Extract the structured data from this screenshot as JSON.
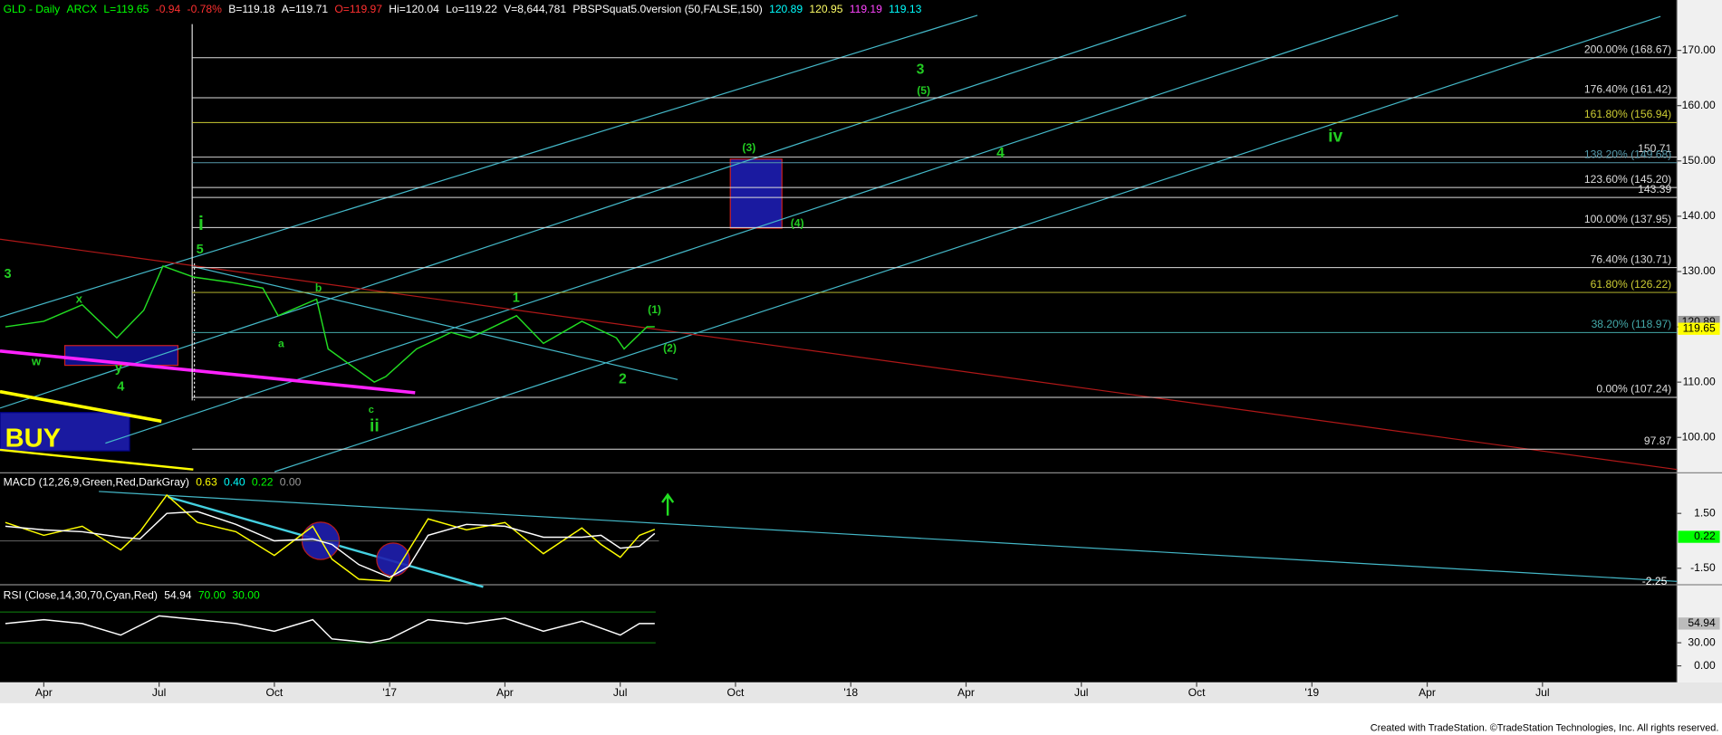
{
  "chart_data": [
    {
      "type": "line",
      "header": [
        {
          "text": "GLD - Daily",
          "color": "#00ff00"
        },
        {
          "text": "ARCX",
          "color": "#00ff00"
        },
        {
          "text": "L=119.65",
          "color": "#00ff00"
        },
        {
          "text": "-0.94",
          "color": "#ff3030"
        },
        {
          "text": "-0.78%",
          "color": "#ff3030"
        },
        {
          "text": "B=119.18",
          "color": "#ffffff"
        },
        {
          "text": "A=119.71",
          "color": "#ffffff"
        },
        {
          "text": "O=119.97",
          "color": "#ff3030"
        },
        {
          "text": "Hi=120.04",
          "color": "#ffffff"
        },
        {
          "text": "Lo=119.22",
          "color": "#ffffff"
        },
        {
          "text": "V=8,644,781",
          "color": "#ffffff"
        },
        {
          "text": "PBSPSquat5.0version (50,FALSE,150)",
          "color": "#ffffff"
        },
        {
          "text": "120.89",
          "color": "#00ffff"
        },
        {
          "text": "120.95",
          "color": "#ffff66"
        },
        {
          "text": "119.19",
          "color": "#ff44ff"
        },
        {
          "text": "119.13",
          "color": "#00ffff"
        }
      ],
      "xlim": [
        1.86,
        45.5
      ],
      "xticks": [
        {
          "value": 3,
          "label": "Apr"
        },
        {
          "value": 6,
          "label": "Jul"
        },
        {
          "value": 9,
          "label": "Oct"
        },
        {
          "value": 12,
          "label": "'17"
        },
        {
          "value": 15,
          "label": "Apr"
        },
        {
          "value": 18,
          "label": "Jul"
        },
        {
          "value": 21,
          "label": "Oct"
        },
        {
          "value": 24,
          "label": "'18"
        },
        {
          "value": 27,
          "label": "Apr"
        },
        {
          "value": 30,
          "label": "Jul"
        },
        {
          "value": 33,
          "label": "Oct"
        },
        {
          "value": 36,
          "label": "'19"
        },
        {
          "value": 39,
          "label": "Apr"
        },
        {
          "value": 42,
          "label": "Jul"
        }
      ],
      "ylim": [
        93.8,
        179.1
      ],
      "yticks": [
        {
          "value": 100,
          "label": "100.00"
        },
        {
          "value": 110,
          "label": "110.00"
        },
        {
          "value": 120,
          "label": "120.00"
        },
        {
          "value": 130,
          "label": "130.00"
        },
        {
          "value": 140,
          "label": "140.00"
        },
        {
          "value": 150,
          "label": "150.00"
        },
        {
          "value": 160,
          "label": "160.00"
        },
        {
          "value": 170,
          "label": "170.00"
        }
      ],
      "x": [
        2.0,
        3.0,
        4.0,
        4.9,
        5.6,
        6.1,
        6.9,
        7.9,
        8.7,
        9.1,
        10.1,
        10.4,
        11.0,
        11.6,
        11.9,
        12.7,
        13.6,
        14.1,
        15.3,
        16.0,
        17.0,
        17.9,
        18.1,
        18.7,
        18.9
      ],
      "series": [
        {
          "color": "#22dd22",
          "values": [
            120,
            121,
            124,
            118,
            123,
            131,
            129,
            128,
            127,
            122,
            125,
            116,
            113,
            110,
            111,
            116,
            119,
            118,
            122,
            117,
            121,
            118,
            116,
            120,
            120
          ]
        }
      ],
      "levels": [
        {
          "value": 168.67,
          "label": "200.00% (168.67)",
          "color": "#dddddd"
        },
        {
          "value": 161.42,
          "label": "176.40% (161.42)",
          "color": "#dddddd"
        },
        {
          "value": 156.94,
          "label": "161.80% (156.94)",
          "color": "#cccc33"
        },
        {
          "value": 150.71,
          "label": "150.71",
          "color": "#dddddd"
        },
        {
          "value": 149.68,
          "label": "138.20% (149.68)",
          "color": "#5599aa"
        },
        {
          "value": 145.2,
          "label": "123.60% (145.20)",
          "color": "#dddddd"
        },
        {
          "value": 143.39,
          "label": "143.39",
          "color": "#dddddd"
        },
        {
          "value": 137.95,
          "label": "100.00% (137.95)",
          "color": "#dddddd"
        },
        {
          "value": 130.71,
          "label": "76.40% (130.71)",
          "color": "#dddddd"
        },
        {
          "value": 126.22,
          "label": "61.80% (126.22)",
          "color": "#cccc33"
        },
        {
          "value": 118.97,
          "label": "38.20% (118.97)",
          "color": "#44aaaa"
        },
        {
          "value": 107.24,
          "label": "0.00% (107.24)",
          "color": "#dddddd"
        },
        {
          "value": 97.87,
          "label": "97.87",
          "color": "#dddddd"
        }
      ],
      "last_labels": [
        {
          "value": 120.89,
          "label": "120.89",
          "color": "#9a9a9a"
        },
        {
          "value": 119.65,
          "label": "119.65",
          "color": "#ffff00"
        }
      ],
      "annotations": [
        {
          "text": "3",
          "color": "#22cc22"
        },
        {
          "text": "w",
          "color": "#22cc22"
        },
        {
          "text": "x",
          "color": "#22cc22"
        },
        {
          "text": "y",
          "color": "#22cc22"
        },
        {
          "text": "4",
          "color": "#22cc22"
        },
        {
          "text": "i",
          "color": "#22cc22"
        },
        {
          "text": "5",
          "color": "#22cc22"
        },
        {
          "text": "b",
          "color": "#22cc22"
        },
        {
          "text": "a",
          "color": "#22cc22"
        },
        {
          "text": "c",
          "color": "#22cc22"
        },
        {
          "text": "ii",
          "color": "#22cc22"
        },
        {
          "text": "1",
          "color": "#22cc22"
        },
        {
          "text": "2",
          "color": "#22cc22"
        },
        {
          "text": "(1)",
          "color": "#22cc22"
        },
        {
          "text": "(2)",
          "color": "#22cc22"
        },
        {
          "text": "(3)",
          "color": "#22cc22"
        },
        {
          "text": "(4)",
          "color": "#22cc22"
        },
        {
          "text": "3",
          "color": "#22cc22"
        },
        {
          "text": "(5)",
          "color": "#22cc22"
        },
        {
          "text": "4",
          "color": "#22cc22"
        },
        {
          "text": "iv",
          "color": "#22cc22"
        },
        {
          "text": "BUY",
          "color": "#ffff00"
        }
      ]
    },
    {
      "type": "line",
      "header": [
        {
          "text": "MACD (12,26,9,Green,Red,DarkGray)",
          "color": "#ffffff"
        },
        {
          "text": "0.63",
          "color": "#ffff00"
        },
        {
          "text": "0.40",
          "color": "#00ffff"
        },
        {
          "text": "0.22",
          "color": "#00ff00"
        },
        {
          "text": "0.00",
          "color": "#999999"
        }
      ],
      "ylim": [
        -2.34,
        3.66
      ],
      "yticks": [
        {
          "value": 1.5,
          "label": "1.50"
        },
        {
          "value": -1.5,
          "label": "-1.50"
        }
      ],
      "x": [
        2,
        3,
        4,
        5,
        5.5,
        6.2,
        7,
        8,
        9,
        10,
        10.5,
        11.2,
        12,
        12.5,
        13,
        14,
        15,
        16,
        17,
        17.5,
        18,
        18.5,
        18.9
      ],
      "series": [
        {
          "color": "#ffff00",
          "values": [
            1.0,
            0.3,
            0.8,
            -0.5,
            0.5,
            2.5,
            1.0,
            0.5,
            -0.8,
            0.8,
            -1.0,
            -2.1,
            -2.2,
            -0.5,
            1.2,
            0.6,
            1.0,
            -0.7,
            0.7,
            -0.2,
            -0.9,
            0.3,
            0.63
          ]
        },
        {
          "color": "#ffffff",
          "values": [
            0.8,
            0.6,
            0.5,
            0.2,
            0.1,
            1.5,
            1.6,
            0.9,
            0.0,
            0.1,
            -0.2,
            -1.3,
            -2.0,
            -1.4,
            0.3,
            0.9,
            0.8,
            0.2,
            0.2,
            0.3,
            -0.4,
            -0.3,
            0.4
          ]
        }
      ],
      "last_labels": [
        {
          "value": 0.22,
          "label": "0.22",
          "color": "#00ff00"
        }
      ],
      "trend_label": {
        "value": -2.25,
        "label": "-2.25"
      }
    },
    {
      "type": "line",
      "header": [
        {
          "text": "RSI (Close,14,30,70,Cyan,Red)",
          "color": "#ffffff"
        },
        {
          "text": "54.94",
          "color": "#ffffff"
        }
      ],
      "levels": [
        {
          "value": 70,
          "label": "70.00",
          "color": "#00ff00"
        },
        {
          "value": 30,
          "label": "30.00",
          "color": "#00ff00"
        }
      ],
      "ylim": [
        -18.6,
        104
      ],
      "yticks": [
        {
          "value": 30,
          "label": "30.00"
        },
        {
          "value": 0,
          "label": "0.00"
        }
      ],
      "x": [
        2,
        3,
        4,
        5,
        6,
        7,
        8,
        9,
        10,
        10.5,
        11.5,
        12,
        13,
        14,
        15,
        16,
        17,
        18,
        18.5,
        18.9
      ],
      "series": [
        {
          "color": "#ffffff",
          "values": [
            55,
            60,
            55,
            40,
            65,
            60,
            55,
            45,
            60,
            35,
            30,
            35,
            60,
            55,
            62,
            45,
            58,
            40,
            55,
            54.94
          ]
        }
      ],
      "last_labels": [
        {
          "value": 54.94,
          "label": "54.94",
          "color": "#bbbbbb"
        }
      ]
    }
  ],
  "footer": "Created with TradeStation. ©TradeStation Technologies, Inc. All rights reserved."
}
